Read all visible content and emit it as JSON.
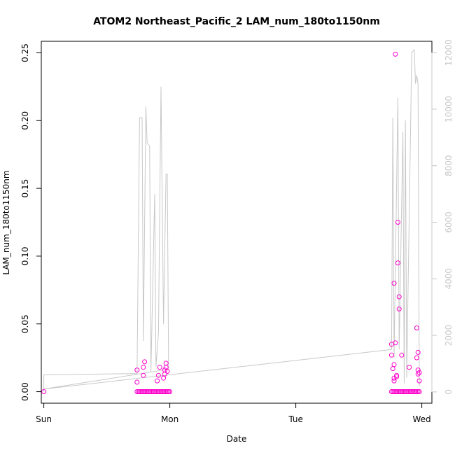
{
  "chart_data": {
    "type": "scatter",
    "title": "ATOM2 Northeast_Pacific_2 LAM_num_180to1150nm",
    "xlabel": "Date",
    "ylabel": "LAM_num_180to1150nm",
    "x_ticks": [
      "Sun",
      "Mon",
      "Tue",
      "Wed"
    ],
    "xlim": [
      -0.02,
      3.08
    ],
    "ylim": [
      -0.0085,
      0.2585
    ],
    "y_ticks": [
      "0.00",
      "0.05",
      "0.10",
      "0.15",
      "0.20",
      "0.25"
    ],
    "y_tick_values": [
      0,
      0.05,
      0.1,
      0.15,
      0.2,
      0.25
    ],
    "y2lim": [
      -400,
      12400
    ],
    "y2_ticks": [
      "0",
      "2000",
      "4000",
      "6000",
      "8000",
      "10000",
      "12000"
    ],
    "y2_tick_values": [
      0,
      2000,
      4000,
      6000,
      8000,
      10000,
      12000
    ],
    "grid": false,
    "colors": {
      "points": "#ff00cc",
      "line": "#c8c8c8",
      "frame": "#000000"
    },
    "series": [
      {
        "marker": "circle",
        "points": [
          {
            "x": 0.0,
            "y": 0.0
          },
          {
            "x": 0.74,
            "y": 0.0
          },
          {
            "x": 0.75,
            "y": 0.0
          },
          {
            "x": 0.76,
            "y": 0.0
          },
          {
            "x": 0.77,
            "y": 0.0
          },
          {
            "x": 0.78,
            "y": 0.0
          },
          {
            "x": 0.79,
            "y": 0.0
          },
          {
            "x": 0.8,
            "y": 0.0
          },
          {
            "x": 0.81,
            "y": 0.0
          },
          {
            "x": 0.82,
            "y": 0.0
          },
          {
            "x": 0.83,
            "y": 0.0
          },
          {
            "x": 0.84,
            "y": 0.0
          },
          {
            "x": 0.85,
            "y": 0.0
          },
          {
            "x": 0.86,
            "y": 0.0
          },
          {
            "x": 0.87,
            "y": 0.0
          },
          {
            "x": 0.88,
            "y": 0.0
          },
          {
            "x": 0.89,
            "y": 0.0
          },
          {
            "x": 0.9,
            "y": 0.0
          },
          {
            "x": 0.91,
            "y": 0.0
          },
          {
            "x": 0.92,
            "y": 0.0
          },
          {
            "x": 0.93,
            "y": 0.0
          },
          {
            "x": 0.94,
            "y": 0.0
          },
          {
            "x": 0.95,
            "y": 0.0
          },
          {
            "x": 0.96,
            "y": 0.0
          },
          {
            "x": 0.97,
            "y": 0.0
          },
          {
            "x": 0.98,
            "y": 0.0
          },
          {
            "x": 0.99,
            "y": 0.0
          },
          {
            "x": 1.0,
            "y": 0.0
          },
          {
            "x": 0.74,
            "y": 0.016
          },
          {
            "x": 0.74,
            "y": 0.007
          },
          {
            "x": 0.79,
            "y": 0.018
          },
          {
            "x": 0.8,
            "y": 0.022
          },
          {
            "x": 0.79,
            "y": 0.012
          },
          {
            "x": 0.9,
            "y": 0.008
          },
          {
            "x": 0.92,
            "y": 0.018
          },
          {
            "x": 0.91,
            "y": 0.012
          },
          {
            "x": 0.95,
            "y": 0.01
          },
          {
            "x": 0.96,
            "y": 0.013
          },
          {
            "x": 0.97,
            "y": 0.021
          },
          {
            "x": 0.97,
            "y": 0.018
          },
          {
            "x": 0.98,
            "y": 0.015
          },
          {
            "x": 0.96,
            "y": 0.016
          },
          {
            "x": 2.76,
            "y": 0.0
          },
          {
            "x": 2.77,
            "y": 0.0
          },
          {
            "x": 2.78,
            "y": 0.0
          },
          {
            "x": 2.79,
            "y": 0.0
          },
          {
            "x": 2.8,
            "y": 0.0
          },
          {
            "x": 2.81,
            "y": 0.0
          },
          {
            "x": 2.82,
            "y": 0.0
          },
          {
            "x": 2.83,
            "y": 0.0
          },
          {
            "x": 2.84,
            "y": 0.0
          },
          {
            "x": 2.85,
            "y": 0.0
          },
          {
            "x": 2.86,
            "y": 0.0
          },
          {
            "x": 2.87,
            "y": 0.0
          },
          {
            "x": 2.88,
            "y": 0.0
          },
          {
            "x": 2.89,
            "y": 0.0
          },
          {
            "x": 2.9,
            "y": 0.0
          },
          {
            "x": 2.91,
            "y": 0.0
          },
          {
            "x": 2.92,
            "y": 0.0
          },
          {
            "x": 2.93,
            "y": 0.0
          },
          {
            "x": 2.94,
            "y": 0.0
          },
          {
            "x": 2.95,
            "y": 0.0
          },
          {
            "x": 2.96,
            "y": 0.0
          },
          {
            "x": 2.97,
            "y": 0.0
          },
          {
            "x": 2.98,
            "y": 0.0
          },
          {
            "x": 2.76,
            "y": 0.035
          },
          {
            "x": 2.76,
            "y": 0.027
          },
          {
            "x": 2.77,
            "y": 0.017
          },
          {
            "x": 2.78,
            "y": 0.08
          },
          {
            "x": 2.78,
            "y": 0.02
          },
          {
            "x": 2.78,
            "y": 0.01
          },
          {
            "x": 2.78,
            "y": 0.008
          },
          {
            "x": 2.79,
            "y": 0.036
          },
          {
            "x": 2.79,
            "y": 0.249
          },
          {
            "x": 2.8,
            "y": 0.012
          },
          {
            "x": 2.8,
            "y": 0.011
          },
          {
            "x": 2.81,
            "y": 0.125
          },
          {
            "x": 2.81,
            "y": 0.095
          },
          {
            "x": 2.82,
            "y": 0.07
          },
          {
            "x": 2.82,
            "y": 0.061
          },
          {
            "x": 2.84,
            "y": 0.027
          },
          {
            "x": 2.9,
            "y": 0.018
          },
          {
            "x": 2.96,
            "y": 0.047
          },
          {
            "x": 2.96,
            "y": 0.025
          },
          {
            "x": 2.97,
            "y": 0.029
          },
          {
            "x": 2.97,
            "y": 0.016
          },
          {
            "x": 2.98,
            "y": 0.014
          },
          {
            "x": 2.97,
            "y": 0.013
          },
          {
            "x": 2.98,
            "y": 0.008
          }
        ]
      },
      {
        "axis": "right",
        "style": "line",
        "points": [
          {
            "x": 0.0,
            "y": 0
          },
          {
            "x": 0.0,
            "y": 600
          },
          {
            "x": 0.74,
            "y": 650
          },
          {
            "x": 0.76,
            "y": 9700
          },
          {
            "x": 0.78,
            "y": 9700
          },
          {
            "x": 0.79,
            "y": 1800
          },
          {
            "x": 0.81,
            "y": 10100
          },
          {
            "x": 0.82,
            "y": 8800
          },
          {
            "x": 0.84,
            "y": 8700
          },
          {
            "x": 0.85,
            "y": 700
          },
          {
            "x": 0.88,
            "y": 7000
          },
          {
            "x": 0.89,
            "y": 900
          },
          {
            "x": 0.91,
            "y": 2100
          },
          {
            "x": 0.93,
            "y": 10800
          },
          {
            "x": 0.95,
            "y": 2400
          },
          {
            "x": 0.97,
            "y": 7700
          },
          {
            "x": 0.98,
            "y": 7700
          },
          {
            "x": 0.99,
            "y": 1000
          },
          {
            "x": 0.99,
            "y": 800
          },
          {
            "x": 0.0,
            "y": 100
          },
          {
            "x": 2.76,
            "y": 1500
          },
          {
            "x": 2.77,
            "y": 9700
          },
          {
            "x": 2.78,
            "y": 1200
          },
          {
            "x": 2.81,
            "y": 10400
          },
          {
            "x": 2.82,
            "y": 1500
          },
          {
            "x": 2.85,
            "y": 9200
          },
          {
            "x": 2.86,
            "y": 300
          },
          {
            "x": 2.87,
            "y": 9600
          },
          {
            "x": 2.88,
            "y": 500
          },
          {
            "x": 2.92,
            "y": 12000
          },
          {
            "x": 2.94,
            "y": 12100
          },
          {
            "x": 2.95,
            "y": 10900
          },
          {
            "x": 2.96,
            "y": 11200
          },
          {
            "x": 2.97,
            "y": 10900
          },
          {
            "x": 2.98,
            "y": 200
          }
        ]
      }
    ]
  }
}
